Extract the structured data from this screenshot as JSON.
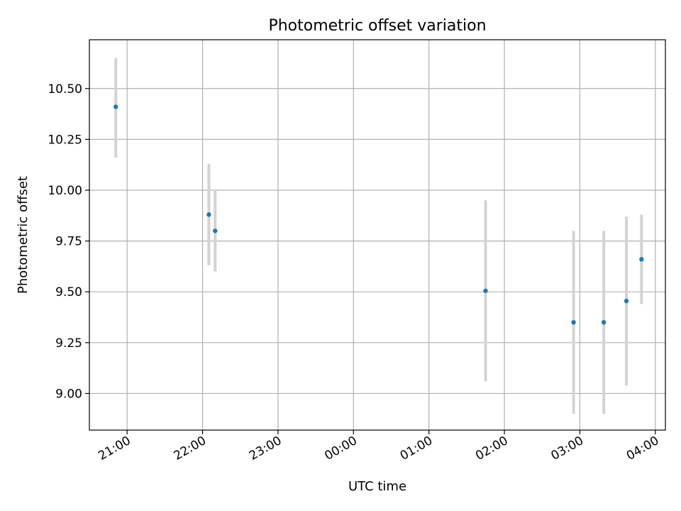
{
  "chart_data": {
    "type": "scatter",
    "title": "Photometric offset variation",
    "xlabel": "UTC time",
    "ylabel": "Photometric offset",
    "grid": true,
    "x_axis": "time",
    "xlim": [
      "20:30",
      "04:08"
    ],
    "ylim": [
      8.82,
      10.74
    ],
    "x_ticks": [
      "21:00",
      "22:00",
      "23:00",
      "00:00",
      "01:00",
      "02:00",
      "03:00",
      "04:00"
    ],
    "y_ticks": [
      "9.00",
      "9.25",
      "9.50",
      "9.75",
      "10.00",
      "10.25",
      "10.50"
    ],
    "series": [
      {
        "points": [
          {
            "x": "20:51",
            "y": 10.41,
            "err_low": 10.16,
            "err_high": 10.65
          },
          {
            "x": "22:05",
            "y": 9.88,
            "err_low": 9.63,
            "err_high": 10.13
          },
          {
            "x": "22:10",
            "y": 9.8,
            "err_low": 9.6,
            "err_high": 10.0
          },
          {
            "x": "01:45",
            "y": 9.505,
            "err_low": 9.06,
            "err_high": 9.95
          },
          {
            "x": "02:55",
            "y": 9.35,
            "err_low": 8.9,
            "err_high": 9.8
          },
          {
            "x": "03:19",
            "y": 9.35,
            "err_low": 8.9,
            "err_high": 9.8
          },
          {
            "x": "03:37",
            "y": 9.455,
            "err_low": 9.04,
            "err_high": 9.87
          },
          {
            "x": "03:49",
            "y": 9.66,
            "err_low": 9.44,
            "err_high": 9.88
          }
        ]
      }
    ],
    "colors": {
      "point": "#1f77b4",
      "errorbar": "#d3d3d3",
      "grid": "#b0b0b0",
      "axes": "#000000"
    }
  }
}
